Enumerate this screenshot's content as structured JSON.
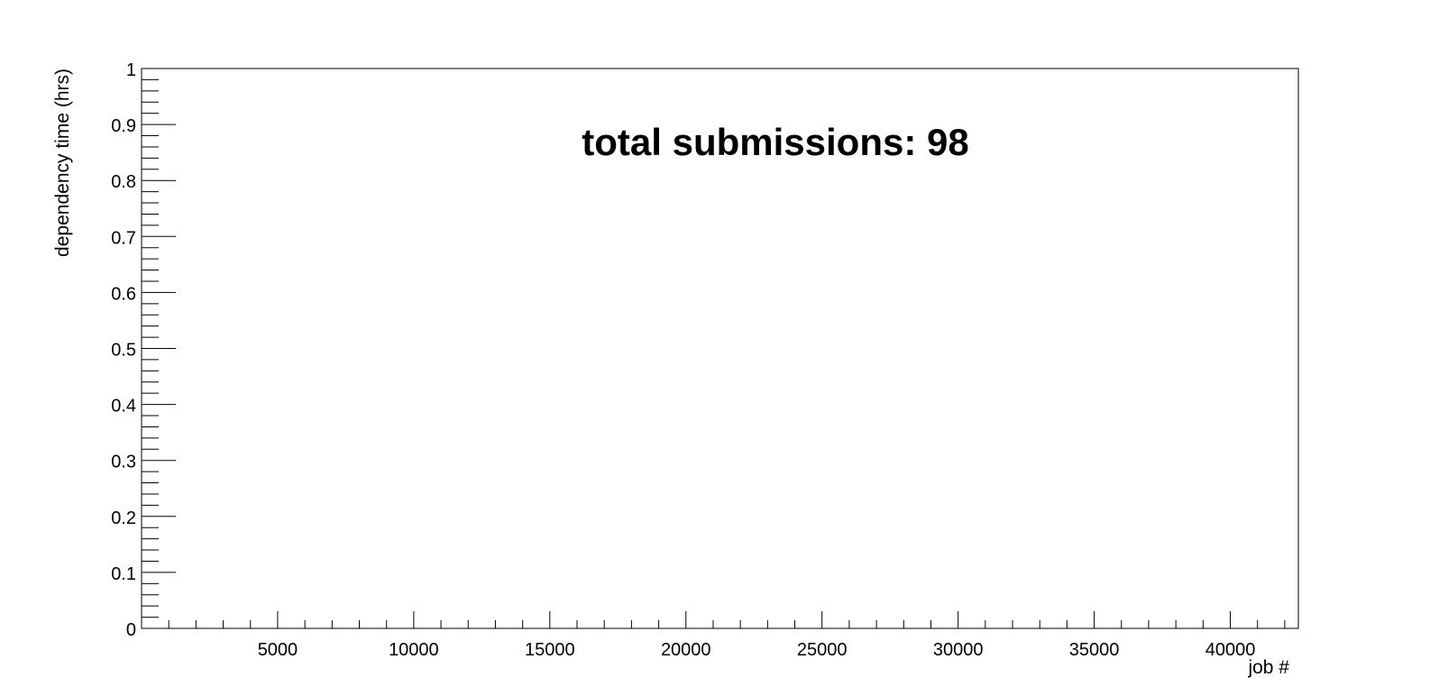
{
  "chart_data": {
    "type": "scatter",
    "title": "",
    "xlabel": "job #",
    "ylabel": "dependency time (hrs)",
    "xlim": [
      0,
      42500
    ],
    "ylim": [
      0,
      1
    ],
    "x_major_ticks": [
      5000,
      10000,
      15000,
      20000,
      25000,
      30000,
      35000,
      40000
    ],
    "x_minor_step": 1000,
    "y_major_ticks": [
      0,
      0.1,
      0.2,
      0.3,
      0.4,
      0.5,
      0.6,
      0.7,
      0.8,
      0.9,
      1
    ],
    "y_minor_step": 0.02,
    "series": [],
    "annotation": "total submissions: 98",
    "grid": false,
    "legend": "none"
  },
  "colors": {
    "background": "#ffffff",
    "axes": "#000000"
  }
}
